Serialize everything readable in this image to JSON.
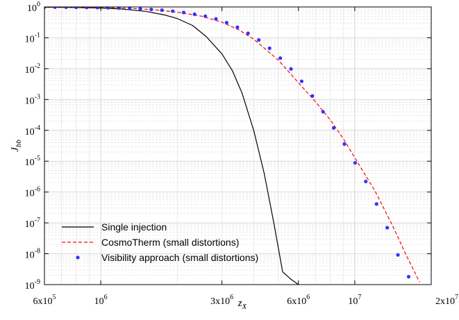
{
  "chart_data": {
    "type": "line",
    "title": "",
    "xlabel": "z",
    "xlabel_sub": "X",
    "ylabel": "J",
    "ylabel_sub": "bb",
    "x_scale": "log",
    "y_scale": "log",
    "xlim": [
      600000,
      20000000
    ],
    "ylim": [
      1e-09,
      1
    ],
    "grid": true,
    "legend_placement": "bottom-left",
    "x_ticks": [
      {
        "value": 600000,
        "mantissa": "6x10",
        "exp": "5"
      },
      {
        "value": 1000000,
        "mantissa": "10",
        "exp": "6"
      },
      {
        "value": 3000000,
        "mantissa": "3x10",
        "exp": "6"
      },
      {
        "value": 6000000,
        "mantissa": "6x10",
        "exp": "6"
      },
      {
        "value": 10000000,
        "mantissa": "10",
        "exp": "7"
      },
      {
        "value": 20000000,
        "mantissa": "2x10",
        "exp": "7"
      }
    ],
    "y_ticks": [
      {
        "value": 1,
        "base": "10",
        "exp": "0"
      },
      {
        "value": 0.1,
        "base": "10",
        "exp": "-1"
      },
      {
        "value": 0.01,
        "base": "10",
        "exp": "-2"
      },
      {
        "value": 0.001,
        "base": "10",
        "exp": "-3"
      },
      {
        "value": 0.0001,
        "base": "10",
        "exp": "-4"
      },
      {
        "value": 1e-05,
        "base": "10",
        "exp": "-5"
      },
      {
        "value": 1e-06,
        "base": "10",
        "exp": "-6"
      },
      {
        "value": 1e-07,
        "base": "10",
        "exp": "-7"
      },
      {
        "value": 1e-08,
        "base": "10",
        "exp": "-8"
      },
      {
        "value": 1e-09,
        "base": "10",
        "exp": "-9"
      }
    ],
    "series": [
      {
        "name": "Single injection",
        "style": "solid",
        "color": "#000000",
        "x": [
          600000,
          800000,
          1000000,
          1200000,
          1500000,
          1800000,
          2000000,
          2300000,
          2600000,
          3000000,
          3300000,
          3600000,
          4000000,
          4400000,
          4800000,
          5200000,
          5600000,
          6000000
        ],
        "y": [
          0.98,
          0.96,
          0.92,
          0.86,
          0.72,
          0.54,
          0.42,
          0.25,
          0.11,
          0.03,
          0.0085,
          0.0016,
          0.0001,
          4e-06,
          1e-07,
          2.6e-09,
          1.5e-09,
          1e-09
        ]
      },
      {
        "name": "CosmoTherm (small distortions)",
        "style": "dashed",
        "color": "#ff0000",
        "x": [
          600000,
          800000,
          1000000,
          1300000,
          1600000,
          2000000,
          2500000,
          3000000,
          3500000,
          4000000,
          5000000,
          6000000,
          7000000,
          8000000,
          9000000,
          10000000,
          12000000,
          14000000,
          16000000,
          18000000
        ],
        "y": [
          0.99,
          0.98,
          0.96,
          0.9,
          0.82,
          0.68,
          0.5,
          0.32,
          0.18,
          0.09,
          0.019,
          0.0035,
          0.00085,
          0.00022,
          5.5e-05,
          1.3e-05,
          1.1e-06,
          9e-08,
          8.5e-09,
          1.2e-09
        ]
      },
      {
        "name": "Visibility approach (small distortions)",
        "style": "markers",
        "color": "#3333ff",
        "x": [
          600000,
          660000,
          730000,
          800000,
          880000,
          970000,
          1070000,
          1180000,
          1300000,
          1430000,
          1580000,
          1740000,
          1920000,
          2120000,
          2340000,
          2580000,
          2840000,
          3130000,
          3450000,
          3800000,
          4190000,
          4620000,
          5090000,
          5610000,
          6180000,
          6810000,
          7500000,
          8260000,
          9100000,
          10030000,
          11050000,
          12180000,
          13420000,
          14790000,
          16300000,
          17960000
        ],
        "y": [
          0.99,
          0.985,
          0.98,
          0.97,
          0.96,
          0.955,
          0.94,
          0.92,
          0.9,
          0.87,
          0.83,
          0.79,
          0.73,
          0.66,
          0.58,
          0.5,
          0.41,
          0.31,
          0.22,
          0.14,
          0.085,
          0.046,
          0.022,
          0.0098,
          0.0039,
          0.0013,
          0.0004,
          0.00012,
          3.6e-05,
          8.8e-06,
          2.2e-06,
          4.1e-07,
          7e-08,
          9.2e-09,
          1.8e-09,
          3.5e-10
        ]
      }
    ]
  }
}
